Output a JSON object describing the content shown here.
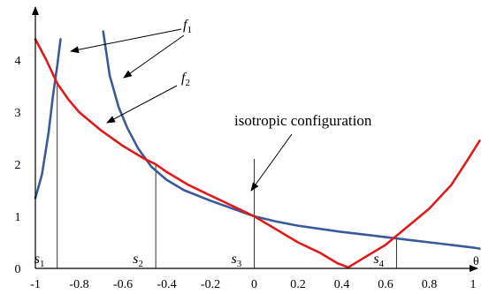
{
  "chart_data": {
    "type": "line",
    "xlabel": "θ",
    "ylabel": "",
    "xlim": [
      -1,
      1.05
    ],
    "ylim": [
      0,
      4.6
    ],
    "x_ticks": [
      "-1",
      "-0.8",
      "-0.6",
      "-0.4",
      "-0.2",
      "0",
      "0.2",
      "0.4",
      "0.6",
      "0.8",
      "1"
    ],
    "y_ticks": [
      "0",
      "1",
      "2",
      "3",
      "4"
    ],
    "colors": {
      "f1": "#3a5a9a",
      "f2": "#e01a1a"
    },
    "series": [
      {
        "name": "f1",
        "segments": [
          [
            [
              -1.0,
              1.35
            ],
            [
              -0.97,
              1.8
            ],
            [
              -0.94,
              2.6
            ],
            [
              -0.92,
              3.3
            ],
            [
              -0.9,
              3.9
            ],
            [
              -0.885,
              4.4
            ]
          ],
          [
            [
              -0.69,
              4.55
            ],
            [
              -0.66,
              3.7
            ],
            [
              -0.62,
              3.1
            ],
            [
              -0.58,
              2.7
            ],
            [
              -0.53,
              2.3
            ],
            [
              -0.47,
              1.95
            ],
            [
              -0.4,
              1.7
            ],
            [
              -0.32,
              1.5
            ],
            [
              -0.2,
              1.3
            ],
            [
              -0.1,
              1.15
            ],
            [
              0.0,
              1.0
            ],
            [
              0.1,
              0.9
            ],
            [
              0.2,
              0.82
            ],
            [
              0.3,
              0.76
            ],
            [
              0.4,
              0.7
            ],
            [
              0.5,
              0.65
            ],
            [
              0.6,
              0.6
            ],
            [
              0.7,
              0.55
            ],
            [
              0.8,
              0.5
            ],
            [
              0.9,
              0.45
            ],
            [
              1.0,
              0.4
            ],
            [
              1.03,
              0.38
            ]
          ]
        ]
      },
      {
        "name": "f2",
        "segments": [
          [
            [
              -1.0,
              4.4
            ],
            [
              -0.95,
              4.0
            ],
            [
              -0.9,
              3.55
            ],
            [
              -0.85,
              3.25
            ],
            [
              -0.8,
              3.0
            ],
            [
              -0.7,
              2.65
            ],
            [
              -0.6,
              2.35
            ],
            [
              -0.5,
              2.1
            ],
            [
              -0.45,
              2.0
            ],
            [
              -0.4,
              1.85
            ],
            [
              -0.3,
              1.6
            ],
            [
              -0.2,
              1.4
            ],
            [
              -0.1,
              1.2
            ],
            [
              0.0,
              1.0
            ],
            [
              0.1,
              0.75
            ],
            [
              0.2,
              0.5
            ],
            [
              0.3,
              0.3
            ],
            [
              0.38,
              0.1
            ],
            [
              0.43,
              0.02
            ],
            [
              0.5,
              0.2
            ],
            [
              0.6,
              0.45
            ],
            [
              0.7,
              0.8
            ],
            [
              0.8,
              1.15
            ],
            [
              0.9,
              1.6
            ],
            [
              0.97,
              2.05
            ],
            [
              1.03,
              2.45
            ]
          ]
        ]
      }
    ],
    "crossings": [
      {
        "label": "s",
        "index": "1",
        "x": -0.9,
        "y": 3.55
      },
      {
        "label": "s",
        "index": "2",
        "x": -0.45,
        "y": 2.0
      },
      {
        "label": "s",
        "index": "3",
        "x": 0.0,
        "y": 1.0
      },
      {
        "label": "s",
        "index": "4",
        "x": 0.65,
        "y": 0.58
      }
    ],
    "annotations": {
      "f1_label": "f",
      "f1_sub": "1",
      "f2_label": "f",
      "f2_sub": "2",
      "isotropic": "isotropic configuration"
    }
  }
}
